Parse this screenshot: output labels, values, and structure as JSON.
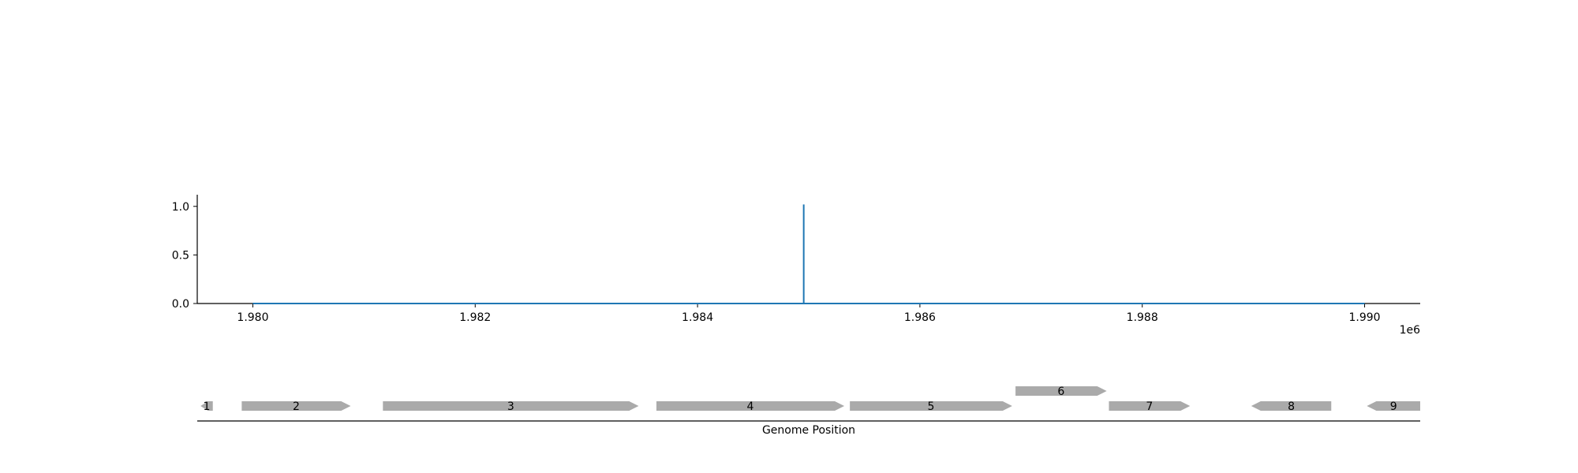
{
  "chart_data": [
    {
      "type": "line",
      "title": "",
      "xlabel": "",
      "ylabel": "",
      "xlim": [
        1979500,
        1990500
      ],
      "ylim": [
        0,
        1.12
      ],
      "x_ticks": [
        1980000,
        1982000,
        1984000,
        1986000,
        1988000,
        1990000
      ],
      "x_tick_labels": [
        "1.980",
        "1.982",
        "1.984",
        "1.986",
        "1.988",
        "1.990"
      ],
      "x_offset_label": "1e6",
      "y_ticks": [
        0.0,
        0.5,
        1.0
      ],
      "y_tick_labels": [
        "0.0",
        "0.5",
        "1.0"
      ],
      "grid": false,
      "series": [
        {
          "color": "#1f77b4",
          "x": [
            1980000,
            1984955,
            1984955,
            1984955,
            1984955,
            1990000
          ],
          "y": [
            0,
            0,
            1.02,
            1.02,
            0,
            0
          ]
        }
      ]
    },
    {
      "type": "gene-track",
      "xlabel": "Genome Position",
      "xlim": [
        1979500,
        1990500
      ],
      "color": "#aaaaaa",
      "genes": [
        {
          "label": "1",
          "start": 1979530,
          "end": 1979640,
          "strand": -1,
          "row": 0
        },
        {
          "label": "2",
          "start": 1979900,
          "end": 1980880,
          "strand": 1,
          "row": 0
        },
        {
          "label": "3",
          "start": 1981170,
          "end": 1983470,
          "strand": 1,
          "row": 0
        },
        {
          "label": "4",
          "start": 1983630,
          "end": 1985320,
          "strand": 1,
          "row": 0
        },
        {
          "label": "5",
          "start": 1985370,
          "end": 1986830,
          "strand": 1,
          "row": 0
        },
        {
          "label": "6",
          "start": 1986860,
          "end": 1987680,
          "strand": 1,
          "row": 1
        },
        {
          "label": "7",
          "start": 1987700,
          "end": 1988430,
          "strand": 1,
          "row": 0
        },
        {
          "label": "8",
          "start": 1988980,
          "end": 1989700,
          "strand": -1,
          "row": 0
        },
        {
          "label": "9",
          "start": 1990020,
          "end": 1990500,
          "strand": -1,
          "row": 0
        }
      ]
    }
  ]
}
